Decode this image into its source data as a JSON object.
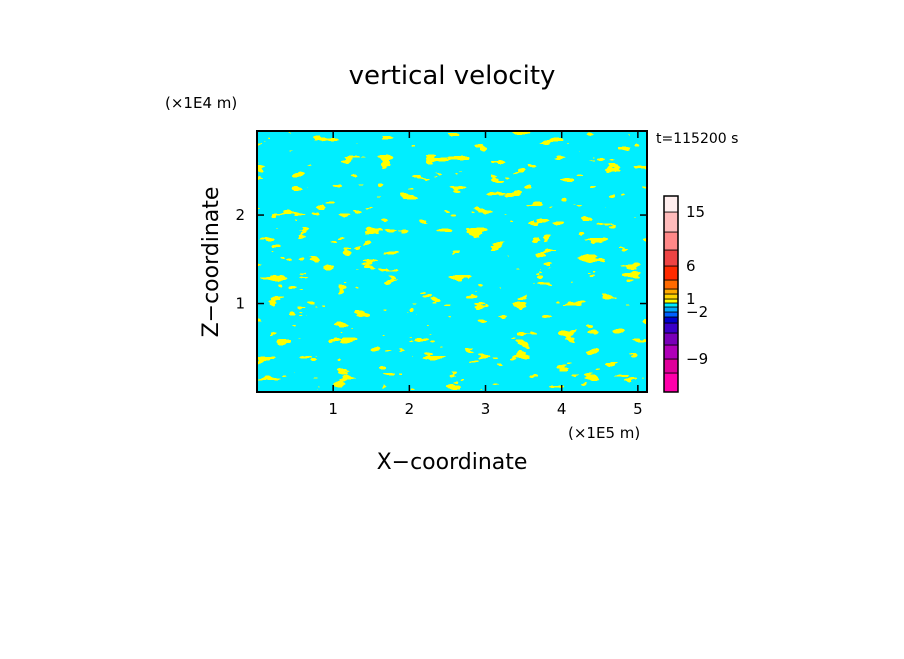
{
  "chart_data": {
    "type": "heatmap",
    "title": "vertical velocity",
    "xlabel": "X−coordinate",
    "ylabel": "Z−coordinate",
    "x_unit": "(×1E5 m)",
    "y_unit": "(×1E4 m)",
    "time_label": "t=115200 s",
    "xlim": [
      0,
      5.12
    ],
    "ylim": [
      0,
      2.95
    ],
    "x_ticks": [
      1,
      2,
      3,
      4,
      5
    ],
    "y_ticks": [
      1,
      2
    ],
    "x_tick_labels": [
      "1",
      "2",
      "3",
      "4",
      "5"
    ],
    "y_tick_labels": [
      "1",
      "2"
    ],
    "colors": {
      "positive": "#ffff00",
      "negative": "#00eeff",
      "frame": "#000000"
    },
    "colorbar": {
      "levels": [
        {
          "color": "#ff00aa"
        },
        {
          "color": "#e0009a"
        },
        {
          "color": "#b000b8"
        },
        {
          "color": "#7a00b8"
        },
        {
          "color": "#3a00c8"
        },
        {
          "color": "#0000cc"
        },
        {
          "color": "#0060ff"
        },
        {
          "color": "#00aaff"
        },
        {
          "color": "#00eeff"
        },
        {
          "color": "#ffff00"
        },
        {
          "color": "#ffd400"
        },
        {
          "color": "#ffaa00"
        },
        {
          "color": "#ff6a00"
        },
        {
          "color": "#ff2a00"
        },
        {
          "color": "#ee4444"
        },
        {
          "color": "#ff8888"
        },
        {
          "color": "#ffbbbb"
        },
        {
          "color": "#ffeeee"
        }
      ],
      "labels": [
        "15",
        "6",
        "1",
        "−2",
        "−9"
      ]
    }
  }
}
